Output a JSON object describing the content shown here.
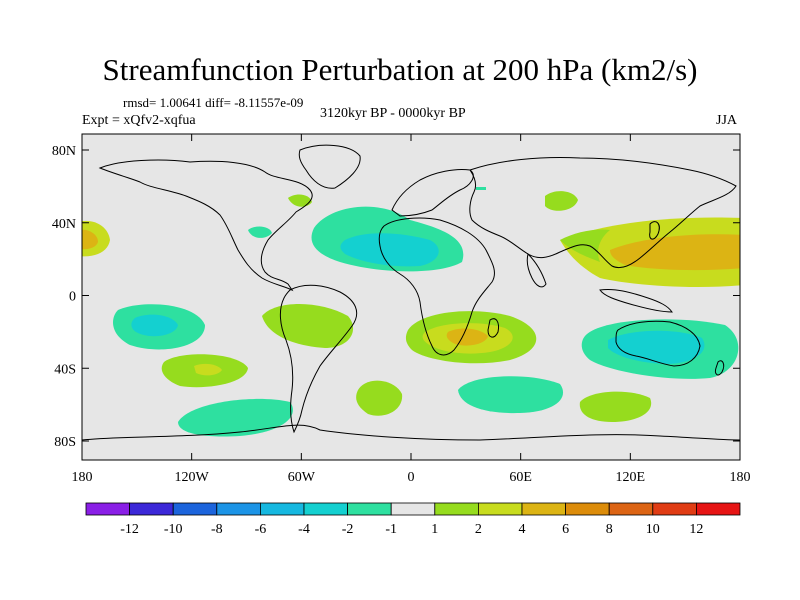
{
  "header": {
    "title": "Streamfunction Perturbation at 200 hPa (km2/s)",
    "stats": "rmsd= 1.00641 diff= -8.11557e-09",
    "experiment": "Expt = xQfv2-xqfua",
    "period": "3120kyr BP - 0000kyr BP",
    "season": "JJA"
  },
  "map": {
    "y_axis_labels": [
      "80N",
      "40N",
      "0",
      "40S",
      "80S"
    ],
    "x_axis_labels": [
      "180",
      "120W",
      "60W",
      "0",
      "60E",
      "120E",
      "180"
    ],
    "background_color": "#e6e6e6"
  },
  "colorbar": {
    "labels": [
      "-12",
      "-10",
      "-8",
      "-6",
      "-4",
      "-2",
      "-1",
      "1",
      "2",
      "4",
      "6",
      "8",
      "10",
      "12"
    ],
    "colors": [
      "#8a1fe6",
      "#3c28d8",
      "#1c64dc",
      "#1c94e6",
      "#16b8e0",
      "#14d0d0",
      "#2ee0a0",
      "#e6e6e6",
      "#96dc1e",
      "#c8dc1e",
      "#dcb414",
      "#dc8c0a",
      "#dc6414",
      "#e03c14",
      "#e61414"
    ]
  }
}
